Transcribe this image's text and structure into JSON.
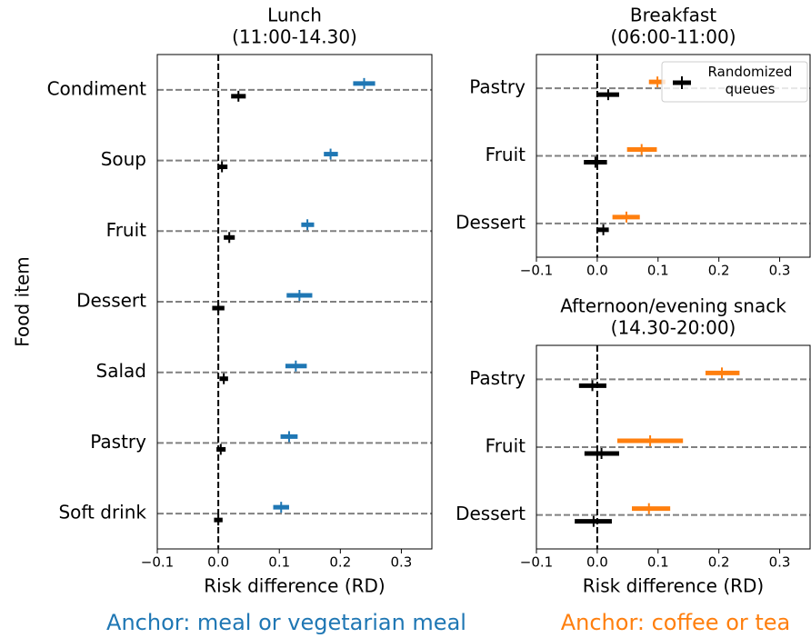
{
  "chart_data": [
    {
      "type": "errorbar",
      "title": [
        "Lunch",
        "(11:00-14.30)"
      ],
      "xlabel": "Risk difference (RD)",
      "ylabel": "Food item",
      "categories": [
        "Condiment",
        "Soup",
        "Fruit",
        "Dessert",
        "Salad",
        "Pastry",
        "Soft drink"
      ],
      "series": [
        {
          "color": "#1f77b4",
          "values": [
            0.239,
            0.184,
            0.146,
            0.133,
            0.127,
            0.116,
            0.103
          ],
          "ci_low": [
            0.221,
            0.173,
            0.136,
            0.112,
            0.11,
            0.102,
            0.09
          ],
          "ci_high": [
            0.257,
            0.196,
            0.157,
            0.154,
            0.145,
            0.13,
            0.116
          ]
        },
        {
          "name": "Randomized queues",
          "color": "#000000",
          "values": [
            0.033,
            0.006,
            0.018,
            0.0,
            0.009,
            0.004,
            0.0
          ],
          "ci_low": [
            0.021,
            -0.001,
            0.009,
            -0.01,
            0.002,
            -0.003,
            -0.007
          ],
          "ci_high": [
            0.045,
            0.015,
            0.027,
            0.01,
            0.016,
            0.012,
            0.007
          ]
        }
      ],
      "xlim": [
        -0.1,
        0.35
      ],
      "xticks": [
        {
          "value": -0.1,
          "label": "−0.1"
        },
        {
          "value": 0,
          "label": "0.0"
        },
        0.1,
        0.2,
        0.3
      ],
      "reference_line": 0,
      "grid": true
    },
    {
      "type": "errorbar",
      "title": [
        "Breakfast",
        "(06:00-11:00)"
      ],
      "categories": [
        "Pastry",
        "Fruit",
        "Dessert"
      ],
      "series": [
        {
          "color": "#ff7f0e",
          "values": [
            0.099,
            0.073,
            0.048
          ],
          "ci_low": [
            0.085,
            0.049,
            0.025
          ],
          "ci_high": [
            0.112,
            0.098,
            0.07
          ]
        },
        {
          "name": "Randomized queues",
          "color": "#000000",
          "values": [
            0.018,
            -0.003,
            0.01
          ],
          "ci_low": [
            0.0,
            -0.022,
            0.001
          ],
          "ci_high": [
            0.036,
            0.016,
            0.019
          ]
        }
      ],
      "xlim": [
        -0.1,
        0.35
      ],
      "xticks": [
        {
          "value": -0.1,
          "label": "−0.1"
        },
        {
          "value": 0,
          "label": "0.0"
        },
        0.1,
        0.2,
        0.3
      ],
      "reference_line": 0,
      "grid": true,
      "legend": "upper right"
    },
    {
      "type": "errorbar",
      "title": [
        "Afternoon/evening snack",
        "(14.30-20:00)"
      ],
      "xlabel": "Risk difference (RD)",
      "categories": [
        "Pastry",
        "Fruit",
        "Dessert"
      ],
      "series": [
        {
          "color": "#ff7f0e",
          "values": [
            0.205,
            0.087,
            0.085
          ],
          "ci_low": [
            0.178,
            0.033,
            0.057
          ],
          "ci_high": [
            0.234,
            0.141,
            0.12
          ]
        },
        {
          "name": "Randomized queues",
          "color": "#000000",
          "values": [
            -0.008,
            0.007,
            -0.006
          ],
          "ci_low": [
            -0.03,
            -0.021,
            -0.037
          ],
          "ci_high": [
            0.015,
            0.036,
            0.024
          ]
        }
      ],
      "xlim": [
        -0.1,
        0.35
      ],
      "xticks": [
        {
          "value": -0.1,
          "label": "−0.1"
        },
        {
          "value": 0,
          "label": "0.0"
        },
        0.1,
        0.2,
        0.3
      ],
      "reference_line": 0,
      "grid": true
    }
  ],
  "captions": [
    {
      "text": "Anchor: meal or vegetarian meal",
      "color": "#1f77b4"
    },
    {
      "text": "Anchor: coffee or tea",
      "color": "#ff7f0e"
    }
  ]
}
